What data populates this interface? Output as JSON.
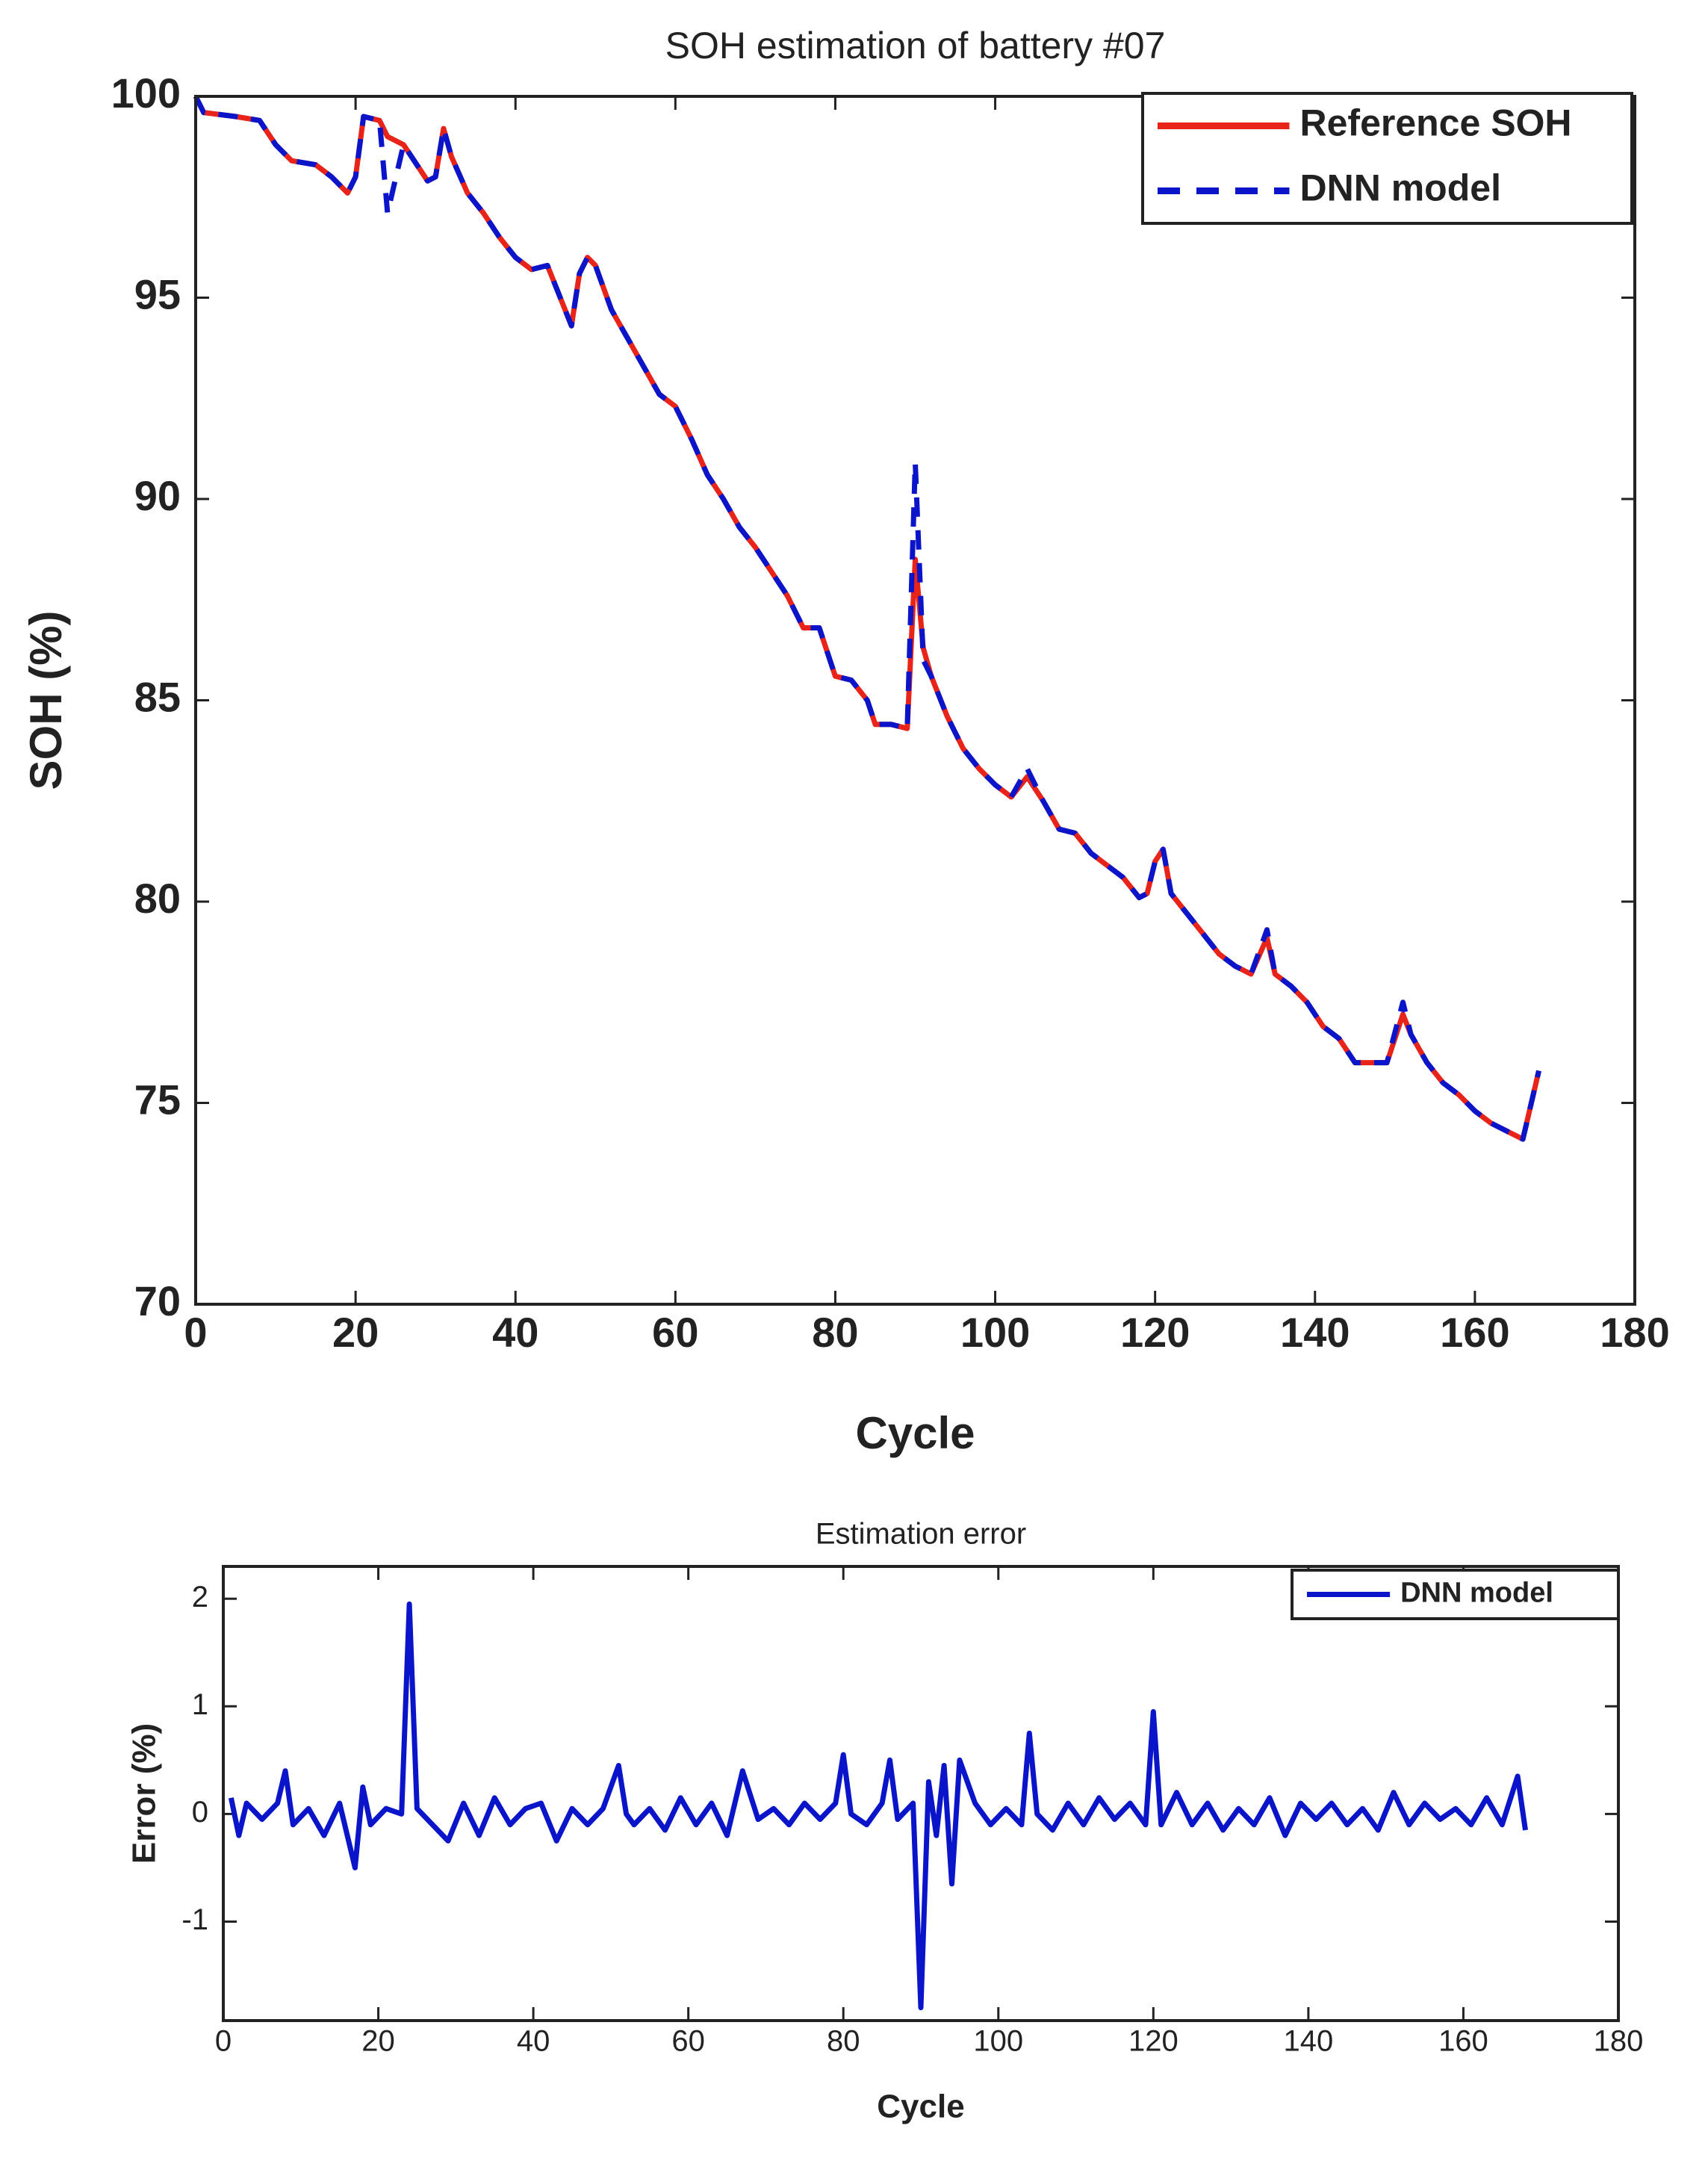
{
  "chart_data": [
    {
      "type": "line",
      "title": "SOH estimation of battery #07",
      "xlabel": "Cycle",
      "ylabel": "SOH (%)",
      "x": [
        0,
        1,
        5,
        8,
        10,
        12,
        15,
        17,
        19,
        20,
        21,
        23,
        24,
        26,
        28,
        29,
        30,
        31,
        32,
        34,
        36,
        38,
        40,
        42,
        44,
        46,
        47,
        48,
        49,
        50,
        52,
        54,
        56,
        58,
        60,
        62,
        64,
        66,
        68,
        70,
        72,
        74,
        76,
        78,
        80,
        82,
        84,
        85,
        87,
        89,
        90,
        91,
        92,
        94,
        96,
        98,
        100,
        102,
        104,
        106,
        108,
        110,
        112,
        114,
        116,
        118,
        119,
        120,
        121,
        122,
        124,
        126,
        128,
        130,
        132,
        134,
        135,
        137,
        139,
        141,
        143,
        145,
        147,
        149,
        151,
        152,
        154,
        156,
        158,
        160,
        162,
        164,
        166,
        168
      ],
      "series": [
        {
          "name": "Reference SOH",
          "color": "#e8231a",
          "dashed": false,
          "values": [
            100,
            99.6,
            99.5,
            99.4,
            98.8,
            98.4,
            98.3,
            98.0,
            97.6,
            98.0,
            99.5,
            99.4,
            99.0,
            98.8,
            98.2,
            97.9,
            98.0,
            99.2,
            98.5,
            97.6,
            97.1,
            96.5,
            96.0,
            95.7,
            95.8,
            94.8,
            94.3,
            95.6,
            96.0,
            95.8,
            94.7,
            94.0,
            93.3,
            92.6,
            92.3,
            91.5,
            90.6,
            90.0,
            89.3,
            88.8,
            88.2,
            87.6,
            86.8,
            86.8,
            85.6,
            85.5,
            85.0,
            84.4,
            84.4,
            84.3,
            88.5,
            86.3,
            85.6,
            84.6,
            83.8,
            83.3,
            82.9,
            82.6,
            83.1,
            82.5,
            81.8,
            81.7,
            81.2,
            80.9,
            80.6,
            80.1,
            80.2,
            81.0,
            81.3,
            80.2,
            79.7,
            79.2,
            78.7,
            78.4,
            78.2,
            79.1,
            78.2,
            77.9,
            77.5,
            76.9,
            76.6,
            76.0,
            76.0,
            76.0,
            77.2,
            76.7,
            76.0,
            75.5,
            75.2,
            74.8,
            74.5,
            74.3,
            74.1,
            75.8
          ]
        },
        {
          "name": "DNN model",
          "color": "#0a14c8",
          "dashed": true,
          "values": [
            100,
            99.6,
            99.5,
            99.4,
            98.8,
            98.4,
            98.3,
            98.0,
            97.6,
            98.0,
            99.5,
            99.4,
            97.1,
            98.8,
            98.2,
            97.9,
            98.0,
            99.2,
            98.5,
            97.6,
            97.1,
            96.5,
            96.0,
            95.7,
            95.8,
            94.8,
            94.3,
            95.6,
            96.0,
            95.8,
            94.7,
            94.0,
            93.3,
            92.6,
            92.3,
            91.5,
            90.6,
            90.0,
            89.3,
            88.8,
            88.2,
            87.6,
            86.8,
            86.8,
            85.6,
            85.5,
            85.0,
            84.4,
            84.4,
            84.3,
            90.9,
            86.0,
            85.6,
            84.6,
            83.8,
            83.3,
            82.9,
            82.6,
            83.3,
            82.5,
            81.8,
            81.7,
            81.2,
            80.9,
            80.6,
            80.1,
            80.2,
            81.0,
            81.3,
            80.2,
            79.7,
            79.2,
            78.7,
            78.4,
            78.2,
            79.3,
            78.2,
            77.9,
            77.5,
            76.9,
            76.6,
            76.0,
            76.0,
            76.0,
            77.5,
            76.7,
            76.0,
            75.5,
            75.2,
            74.8,
            74.5,
            74.3,
            74.1,
            75.8
          ]
        }
      ],
      "xlim": [
        0,
        180
      ],
      "xticks": [
        0,
        20,
        40,
        60,
        80,
        100,
        120,
        140,
        160,
        180
      ],
      "ylim": [
        70,
        100
      ],
      "yticks": [
        70,
        75,
        80,
        85,
        90,
        95,
        100
      ],
      "legend": "upper right"
    },
    {
      "type": "line",
      "title": "Estimation error",
      "xlabel": "Cycle",
      "ylabel": "Error (%)",
      "x": [
        1,
        2,
        3,
        5,
        7,
        8,
        9,
        11,
        13,
        15,
        17,
        18,
        19,
        21,
        23,
        24,
        25,
        27,
        29,
        31,
        33,
        35,
        37,
        39,
        41,
        43,
        45,
        47,
        49,
        51,
        52,
        53,
        55,
        57,
        59,
        61,
        63,
        65,
        67,
        69,
        71,
        73,
        75,
        77,
        79,
        80,
        81,
        83,
        85,
        86,
        87,
        89,
        90,
        91,
        92,
        93,
        94,
        95,
        97,
        99,
        101,
        103,
        104,
        105,
        107,
        109,
        111,
        113,
        115,
        117,
        119,
        120,
        121,
        123,
        125,
        127,
        129,
        131,
        133,
        135,
        137,
        139,
        141,
        143,
        145,
        147,
        149,
        151,
        153,
        155,
        157,
        159,
        161,
        163,
        165,
        167,
        168
      ],
      "series": [
        {
          "name": "DNN model",
          "color": "#0a14c8",
          "dashed": false,
          "values": [
            0.15,
            -0.2,
            0.1,
            -0.05,
            0.1,
            0.4,
            -0.1,
            0.05,
            -0.2,
            0.1,
            -0.5,
            0.25,
            -0.1,
            0.05,
            0,
            1.95,
            0.05,
            -0.1,
            -0.25,
            0.1,
            -0.2,
            0.15,
            -0.1,
            0.05,
            0.1,
            -0.25,
            0.05,
            -0.1,
            0.05,
            0.45,
            0,
            -0.1,
            0.05,
            -0.15,
            0.15,
            -0.1,
            0.1,
            -0.2,
            0.4,
            -0.05,
            0.05,
            -0.1,
            0.1,
            -0.05,
            0.1,
            0.55,
            0,
            -0.1,
            0.1,
            0.5,
            -0.05,
            0.1,
            -1.8,
            0.3,
            -0.2,
            0.45,
            -0.65,
            0.5,
            0.1,
            -0.1,
            0.05,
            -0.1,
            0.75,
            0,
            -0.15,
            0.1,
            -0.1,
            0.15,
            -0.05,
            0.1,
            -0.1,
            0.95,
            -0.1,
            0.2,
            -0.1,
            0.1,
            -0.15,
            0.05,
            -0.1,
            0.15,
            -0.2,
            0.1,
            -0.05,
            0.1,
            -0.1,
            0.05,
            -0.15,
            0.2,
            -0.1,
            0.1,
            -0.05,
            0.05,
            -0.1,
            0.15,
            -0.1,
            0.35,
            -0.15
          ]
        }
      ],
      "xlim": [
        0,
        180
      ],
      "xticks": [
        0,
        20,
        40,
        60,
        80,
        100,
        120,
        140,
        160,
        180
      ],
      "ylim": [
        -1.92,
        2.3
      ],
      "yticks": [
        -1,
        0,
        1,
        2
      ],
      "legend": "upper right"
    }
  ]
}
